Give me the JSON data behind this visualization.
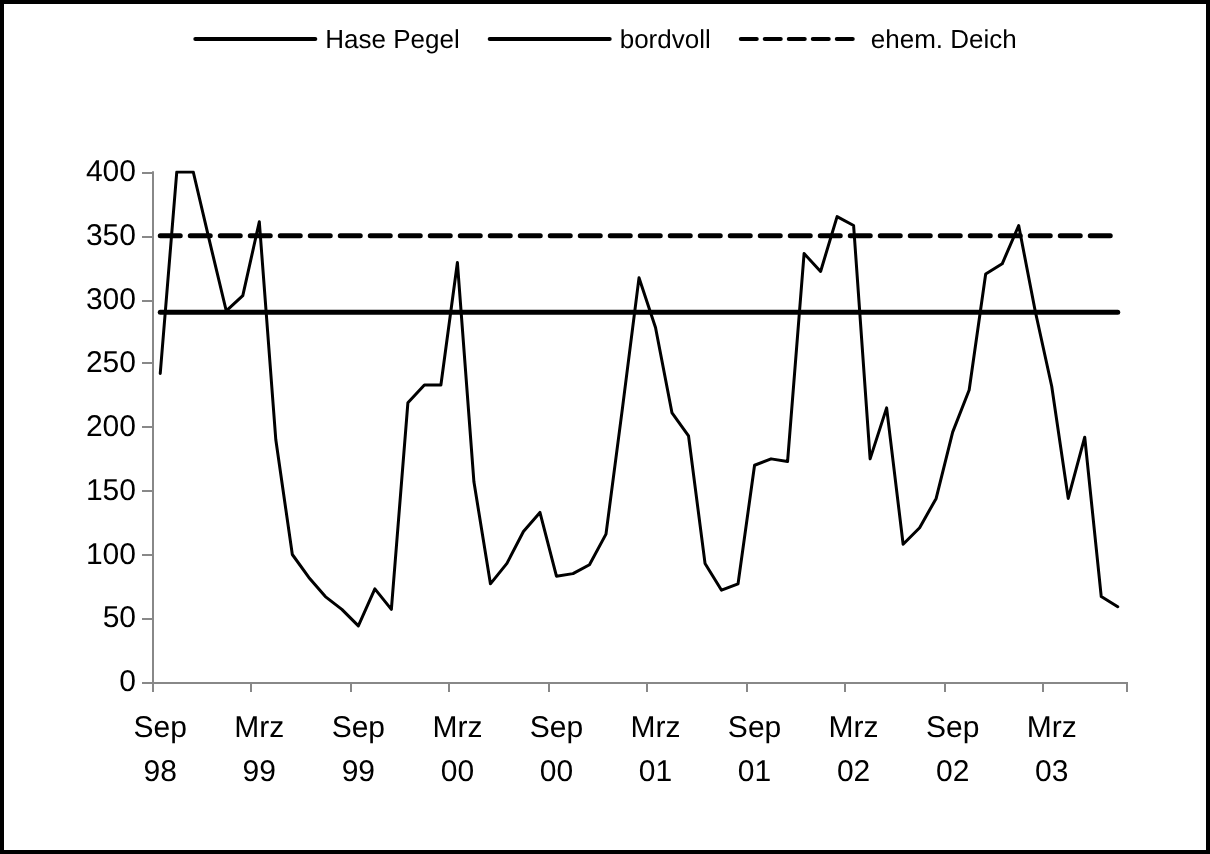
{
  "chart_data": {
    "type": "line",
    "categories": [
      "Sep 98",
      null,
      null,
      null,
      null,
      null,
      "Mrz 99",
      null,
      null,
      null,
      null,
      null,
      "Sep 99",
      null,
      null,
      null,
      null,
      null,
      "Mrz 00",
      null,
      null,
      null,
      null,
      null,
      "Sep 00",
      null,
      null,
      null,
      null,
      null,
      "Mrz 01",
      null,
      null,
      null,
      null,
      null,
      "Sep 01",
      null,
      null,
      null,
      null,
      null,
      "Mrz 02",
      null,
      null,
      null,
      null,
      null,
      "Sep 02",
      null,
      null,
      null,
      null,
      null,
      "Mrz 03",
      null,
      null,
      null,
      null
    ],
    "ylim": [
      0,
      400
    ],
    "yticks": [
      0,
      50,
      100,
      150,
      200,
      250,
      300,
      350,
      400
    ],
    "grid": false,
    "legend": "top",
    "marker": "none",
    "series": [
      {
        "name": "Hase Pegel",
        "color": "#000000",
        "line_style": "solid",
        "values": [
          242,
          400,
          400,
          345,
          291,
          303,
          361,
          190,
          100,
          82,
          67,
          57,
          44,
          73,
          57,
          219,
          233,
          233,
          329,
          157,
          77,
          93,
          118,
          133,
          83,
          85,
          92,
          116,
          215,
          317,
          278,
          211,
          193,
          93,
          72,
          77,
          170,
          175,
          173,
          336,
          322,
          365,
          358,
          175,
          215,
          108,
          121,
          144,
          196,
          229,
          320,
          328,
          358,
          291,
          232,
          144,
          192,
          67,
          59
        ]
      },
      {
        "name": "bordvoll",
        "color": "#000000",
        "line_style": "solid",
        "values": [
          290,
          290,
          290,
          290,
          290,
          290,
          290,
          290,
          290,
          290,
          290,
          290,
          290,
          290,
          290,
          290,
          290,
          290,
          290,
          290,
          290,
          290,
          290,
          290,
          290,
          290,
          290,
          290,
          290,
          290,
          290,
          290,
          290,
          290,
          290,
          290,
          290,
          290,
          290,
          290,
          290,
          290,
          290,
          290,
          290,
          290,
          290,
          290,
          290,
          290,
          290,
          290,
          290,
          290,
          290,
          290,
          290,
          290,
          290
        ]
      },
      {
        "name": "ehem. Deich",
        "color": "#000000",
        "line_style": "dashed",
        "values": [
          350,
          350,
          350,
          350,
          350,
          350,
          350,
          350,
          350,
          350,
          350,
          350,
          350,
          350,
          350,
          350,
          350,
          350,
          350,
          350,
          350,
          350,
          350,
          350,
          350,
          350,
          350,
          350,
          350,
          350,
          350,
          350,
          350,
          350,
          350,
          350,
          350,
          350,
          350,
          350,
          350,
          350,
          350,
          350,
          350,
          350,
          350,
          350,
          350,
          350,
          350,
          350,
          350,
          350,
          350,
          350,
          350,
          350,
          350
        ]
      }
    ]
  }
}
